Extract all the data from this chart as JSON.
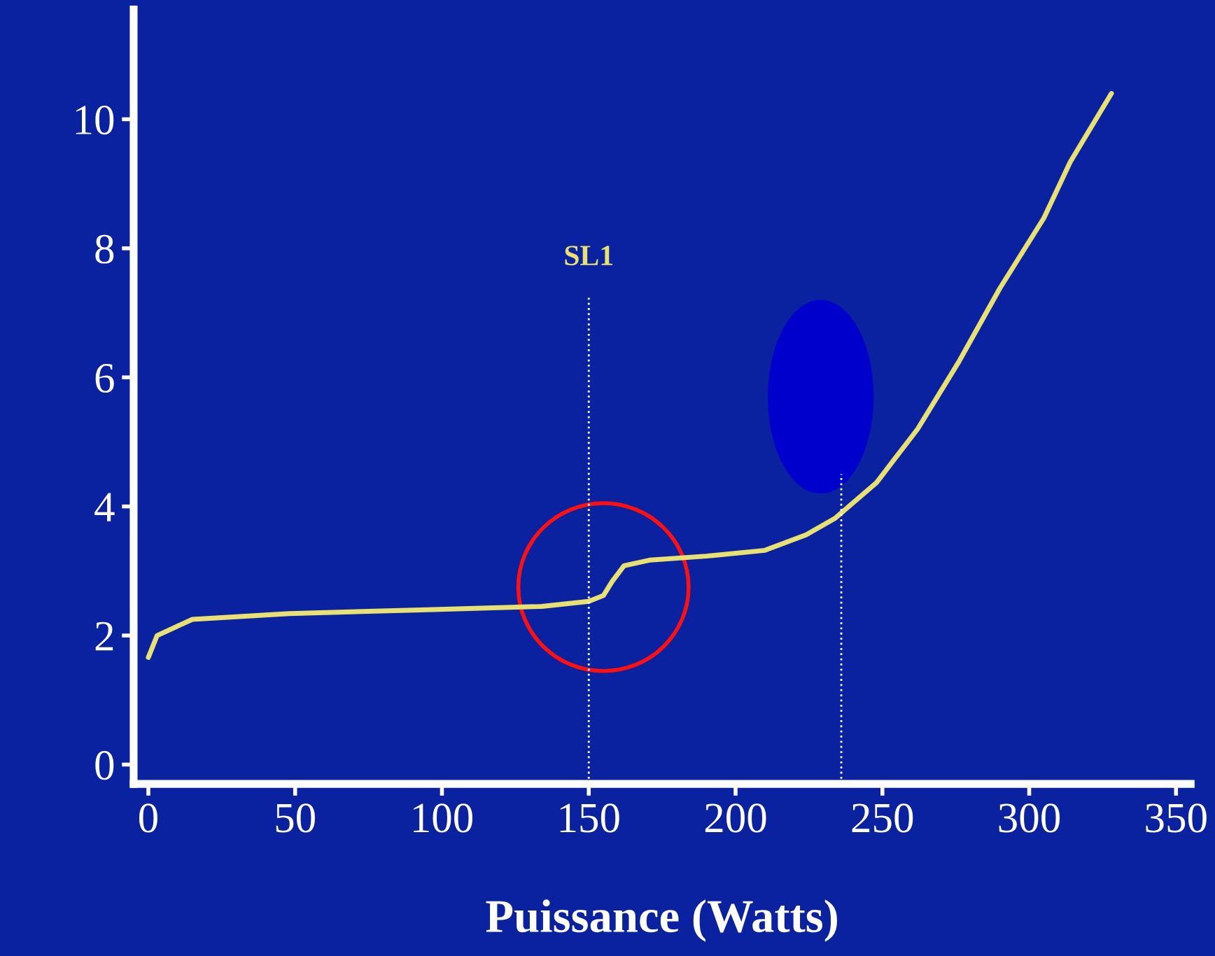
{
  "chart_data": {
    "type": "line",
    "xlabel": "Puissance (Watts)",
    "x": [
      0,
      3,
      15,
      48,
      95,
      134,
      150,
      155,
      158,
      162,
      171,
      190,
      210,
      224,
      234,
      248,
      262,
      276,
      290,
      305,
      314,
      328
    ],
    "series": [
      {
        "color": "#e8e070",
        "values": [
          1.66,
          2.0,
          2.25,
          2.34,
          2.4,
          2.45,
          2.53,
          2.62,
          2.84,
          3.08,
          3.17,
          3.23,
          3.32,
          3.56,
          3.82,
          4.37,
          5.2,
          6.24,
          7.38,
          8.47,
          9.34,
          10.4
        ]
      }
    ],
    "xlim": [
      -5,
      355
    ],
    "xticks": [
      0,
      50,
      100,
      150,
      200,
      250,
      300,
      350
    ],
    "ylim": [
      -0.3,
      11.7
    ],
    "yticks": [
      0,
      2,
      4,
      6,
      8,
      10
    ],
    "ref_lines": [
      {
        "axis": "x",
        "value": 150,
        "label": "SL1",
        "color": "#ffffff",
        "line_style": "dotted"
      },
      {
        "axis": "x",
        "value": 236,
        "color": "#ffffff",
        "line_style": "dotted"
      }
    ],
    "grid": false,
    "legend": false,
    "marker": "none",
    "line_style": "solid"
  }
}
